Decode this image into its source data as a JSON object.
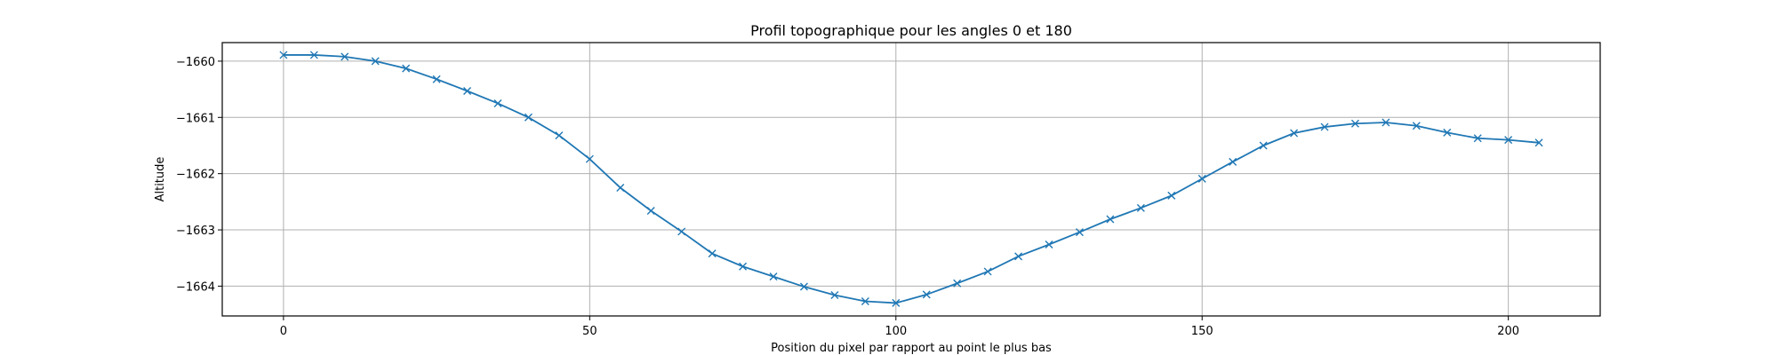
{
  "chart_data": {
    "type": "line",
    "title": "Profil topographique pour les angles 0 et 180",
    "xlabel": "Position du pixel par rapport au point le plus bas",
    "ylabel": "Altitude",
    "xlim": [
      -10,
      215
    ],
    "ylim": [
      -1664.53,
      -1659.67
    ],
    "xticks": [
      0,
      50,
      100,
      150,
      200
    ],
    "yticks": [
      -1664,
      -1663,
      -1662,
      -1661,
      -1660
    ],
    "grid": true,
    "legend": "none",
    "series": [
      {
        "color": "#1f77b4",
        "marker": "x",
        "x": [
          0,
          5,
          10,
          15,
          20,
          25,
          30,
          35,
          40,
          45,
          50,
          55,
          60,
          65,
          70,
          75,
          80,
          85,
          90,
          95,
          100,
          105,
          110,
          115,
          120,
          125,
          130,
          135,
          140,
          145,
          150,
          155,
          160,
          165,
          170,
          175,
          180,
          185,
          190,
          195,
          200,
          205
        ],
        "y": [
          -1659.89,
          -1659.89,
          -1659.92,
          -1660.0,
          -1660.13,
          -1660.32,
          -1660.53,
          -1660.75,
          -1661.0,
          -1661.32,
          -1661.74,
          -1662.25,
          -1662.66,
          -1663.03,
          -1663.42,
          -1663.65,
          -1663.83,
          -1664.01,
          -1664.16,
          -1664.27,
          -1664.3,
          -1664.15,
          -1663.95,
          -1663.74,
          -1663.47,
          -1663.26,
          -1663.04,
          -1662.81,
          -1662.61,
          -1662.39,
          -1662.09,
          -1661.79,
          -1661.5,
          -1661.28,
          -1661.17,
          -1661.11,
          -1661.09,
          -1661.15,
          -1661.27,
          -1661.37,
          -1661.4,
          -1661.45
        ]
      }
    ]
  }
}
